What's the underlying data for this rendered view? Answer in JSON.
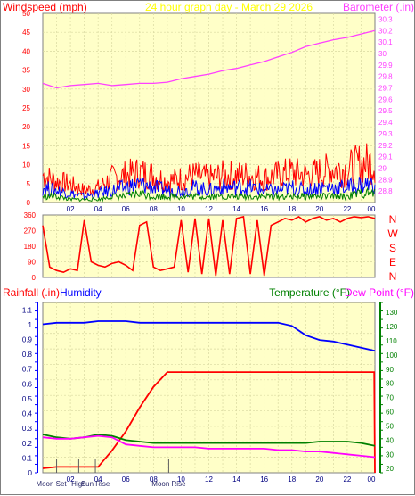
{
  "header": {
    "left_label": "Windspeed (mph)",
    "title": "24 hour graph day - March 29 2026",
    "right_label": "Barometer (.in)"
  },
  "bottom_header": {
    "rainfall_label": "Rainfall (.in)",
    "humidity_label": "Humidity",
    "temperature_label": "Temperature (°F)",
    "dewpoint_label": "Dew Point (°F)"
  },
  "compass": [
    "N",
    "W",
    "S",
    "E",
    "N"
  ],
  "events": [
    {
      "label": "Moon Set",
      "hour": 1.0
    },
    {
      "label": "High",
      "hour": 2.6
    },
    {
      "label": "Sun Rise",
      "hour": 3.8
    },
    {
      "label": "Moon Rise",
      "hour": 9.1
    }
  ],
  "colors": {
    "plot_bg": "#ffffc8",
    "grid": "#d8d8a0",
    "wind_gust": "#ff0000",
    "wind_avg": "#0000ff",
    "wind_low": "#008000",
    "barometer": "#ff40ff",
    "direction": "#ff0000",
    "rain": "#ff0000",
    "humidity": "#0000ff",
    "temperature": "#008000",
    "dewpoint": "#ff00ff",
    "axis_blue": "#0000ff",
    "axis_green": "#008000"
  },
  "chart_data": [
    {
      "type": "line",
      "x_ticks": [
        "02",
        "04",
        "06",
        "08",
        "10",
        "12",
        "14",
        "16",
        "18",
        "20",
        "22",
        "00"
      ],
      "y_left_ticks": [
        "0",
        "5",
        "10",
        "15",
        "20",
        "25",
        "30",
        "35",
        "40",
        "45",
        "50"
      ],
      "ylim_left": [
        0,
        50
      ],
      "y_right_ticks": [
        "28.8",
        "28.9",
        "29",
        "29.1",
        "29.2",
        "29.3",
        "29.4",
        "29.5",
        "29.6",
        "29.7",
        "29.8",
        "29.9",
        "30",
        "30.1",
        "30.2",
        "30.3"
      ],
      "ylim_right": [
        28.7,
        30.35
      ],
      "series": [
        {
          "name": "Windspeed (mph)",
          "axis": "left",
          "component": "gust",
          "x": [
            0,
            1,
            2,
            3,
            4,
            5,
            6,
            7,
            8,
            9,
            10,
            11,
            12,
            13,
            14,
            15,
            16,
            17,
            18,
            19,
            20,
            21,
            22,
            23,
            24
          ],
          "y": [
            9,
            7,
            6,
            4,
            5,
            8,
            9,
            10,
            9,
            7,
            8,
            9,
            8,
            9,
            9,
            9,
            8,
            9,
            10,
            9,
            10,
            11,
            11,
            13,
            13
          ]
        },
        {
          "name": "Windspeed (mph)",
          "axis": "left",
          "component": "average",
          "x": [
            0,
            1,
            2,
            3,
            4,
            5,
            6,
            7,
            8,
            9,
            10,
            11,
            12,
            13,
            14,
            15,
            16,
            17,
            18,
            19,
            20,
            21,
            22,
            23,
            24
          ],
          "y": [
            5,
            4,
            3,
            2,
            3,
            4,
            5,
            6,
            5,
            4,
            4,
            5,
            4,
            5,
            5,
            5,
            4,
            4,
            5,
            4,
            5,
            5,
            5,
            6,
            6
          ]
        },
        {
          "name": "Windspeed (mph)",
          "axis": "left",
          "component": "low",
          "x": [
            0,
            1,
            2,
            3,
            4,
            5,
            6,
            7,
            8,
            9,
            10,
            11,
            12,
            13,
            14,
            15,
            16,
            17,
            18,
            19,
            20,
            21,
            22,
            23,
            24
          ],
          "y": [
            2,
            2,
            1,
            1,
            1,
            2,
            2,
            3,
            2,
            2,
            2,
            2,
            2,
            2,
            2,
            2,
            2,
            2,
            2,
            2,
            2,
            2,
            2,
            3,
            3
          ]
        },
        {
          "name": "Barometer (.in)",
          "axis": "right",
          "x": [
            0,
            1,
            2,
            3,
            4,
            5,
            6,
            7,
            8,
            9,
            10,
            11,
            12,
            13,
            14,
            15,
            16,
            17,
            18,
            19,
            20,
            21,
            22,
            23,
            24
          ],
          "y": [
            29.74,
            29.7,
            29.72,
            29.73,
            29.74,
            29.72,
            29.73,
            29.74,
            29.74,
            29.75,
            29.78,
            29.8,
            29.82,
            29.85,
            29.87,
            29.9,
            29.93,
            29.97,
            30.01,
            30.06,
            30.09,
            30.12,
            30.14,
            30.17,
            30.2
          ]
        }
      ]
    },
    {
      "type": "scatter",
      "y_ticks": [
        "0",
        "90",
        "180",
        "270",
        "360"
      ],
      "ylim": [
        0,
        360
      ],
      "series": [
        {
          "name": "Wind direction",
          "x": [
            0,
            0.5,
            1,
            1.5,
            2,
            2.5,
            3,
            3.5,
            4,
            4.5,
            5,
            5.5,
            6,
            6.5,
            7,
            7.5,
            8,
            8.5,
            9,
            9.5,
            10,
            10.5,
            11,
            11.5,
            12,
            12.5,
            13,
            13.5,
            14,
            14.5,
            15,
            15.5,
            16,
            16.5,
            17,
            17.5,
            18,
            18.5,
            19,
            19.5,
            20,
            20.5,
            21,
            21.5,
            22,
            22.5,
            23,
            23.5,
            24
          ],
          "y": [
            300,
            60,
            40,
            30,
            50,
            40,
            330,
            90,
            70,
            60,
            80,
            90,
            70,
            40,
            300,
            320,
            60,
            40,
            50,
            60,
            330,
            30,
            340,
            20,
            340,
            10,
            330,
            20,
            340,
            350,
            20,
            330,
            10,
            300,
            320,
            340,
            330,
            350,
            320,
            340,
            350,
            330,
            340,
            320,
            340,
            350,
            345,
            350,
            340
          ]
        }
      ]
    },
    {
      "type": "line",
      "x_ticks": [
        "02",
        "04",
        "06",
        "08",
        "10",
        "12",
        "14",
        "16",
        "18",
        "20",
        "22",
        "00"
      ],
      "y_left_ticks": [
        "0",
        "0.1",
        "0.2",
        "0.3",
        "0.4",
        "0.5",
        "0.6",
        "0.7",
        "0.8",
        "0.9",
        "1",
        "1.1"
      ],
      "ylim_left": [
        0,
        1.15
      ],
      "y_right_ticks": [
        "20",
        "30",
        "40",
        "50",
        "60",
        "70",
        "80",
        "90",
        "100",
        "110",
        "120",
        "130"
      ],
      "ylim_right": [
        17,
        137
      ],
      "series": [
        {
          "name": "Rainfall (.in)",
          "axis": "left",
          "x": [
            0,
            1,
            2,
            3,
            4,
            5,
            6,
            7,
            8,
            9,
            10,
            11,
            12,
            13,
            14,
            15,
            16,
            17,
            18,
            19,
            20,
            21,
            22,
            23,
            23.95,
            24
          ],
          "y": [
            0.03,
            0.04,
            0.04,
            0.04,
            0.04,
            0.15,
            0.28,
            0.44,
            0.58,
            0.68,
            0.68,
            0.68,
            0.68,
            0.68,
            0.68,
            0.68,
            0.68,
            0.68,
            0.68,
            0.68,
            0.68,
            0.68,
            0.68,
            0.68,
            0.68,
            0.0
          ]
        },
        {
          "name": "Humidity",
          "axis": "right_humidity",
          "x": [
            0,
            1,
            2,
            3,
            4,
            5,
            6,
            7,
            8,
            9,
            10,
            11,
            12,
            13,
            14,
            15,
            16,
            17,
            18,
            19,
            20,
            21,
            22,
            23,
            24
          ],
          "y": [
            95,
            96,
            96,
            96,
            97,
            97,
            97,
            96,
            96,
            96,
            96,
            96,
            96,
            96,
            96,
            96,
            96,
            96,
            94,
            88,
            85,
            84,
            82,
            80,
            78
          ]
        },
        {
          "name": "Temperature (°F)",
          "axis": "right",
          "x": [
            0,
            1,
            2,
            3,
            4,
            5,
            6,
            7,
            8,
            9,
            10,
            11,
            12,
            13,
            14,
            15,
            16,
            17,
            18,
            19,
            20,
            21,
            22,
            23,
            24
          ],
          "y": [
            44,
            42,
            41,
            42,
            44,
            43,
            40,
            39,
            38,
            38,
            38,
            38,
            38,
            38,
            38,
            38,
            38,
            38,
            38,
            38,
            39,
            39,
            39,
            38,
            36
          ]
        },
        {
          "name": "Dew Point (°F)",
          "axis": "right",
          "x": [
            0,
            1,
            2,
            3,
            4,
            5,
            6,
            7,
            8,
            9,
            10,
            11,
            12,
            13,
            14,
            15,
            16,
            17,
            18,
            19,
            20,
            21,
            22,
            23,
            24
          ],
          "y": [
            42,
            41,
            41,
            42,
            43,
            42,
            37,
            36,
            35,
            35,
            35,
            35,
            34,
            34,
            34,
            34,
            34,
            33,
            33,
            32,
            32,
            31,
            30,
            29,
            28
          ]
        }
      ]
    }
  ]
}
